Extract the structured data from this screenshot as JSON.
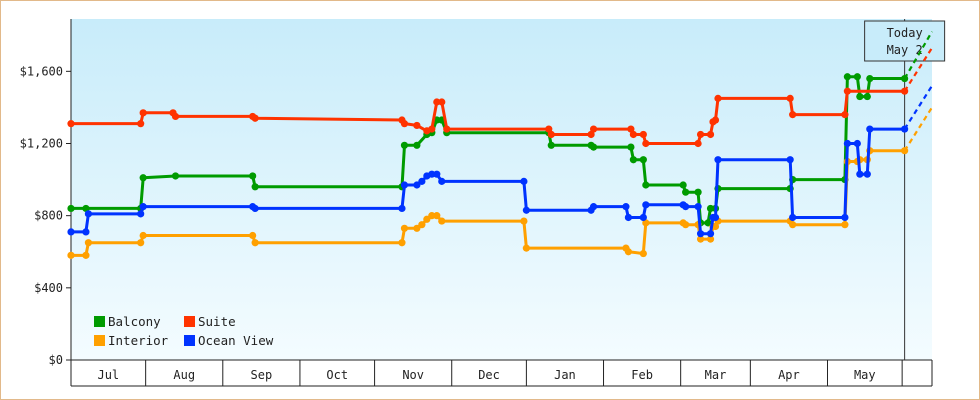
{
  "chart_data": {
    "type": "line",
    "title": "",
    "xlabel": "",
    "ylabel": "",
    "y_ticks": [
      "$0",
      "$400",
      "$800",
      "$1,200",
      "$1,600"
    ],
    "y_tick_values": [
      0,
      400,
      800,
      1200,
      1600
    ],
    "ylim": [
      0,
      1890
    ],
    "x_months": [
      "Jul",
      "Aug",
      "Sep",
      "Oct",
      "Nov",
      "Dec",
      "Jan",
      "Feb",
      "Mar",
      "Apr",
      "May"
    ],
    "x_range": [
      "2024-06-01",
      "2025-05-13"
    ],
    "today": {
      "label": "Today",
      "date_label": "May 2",
      "date": "2025-05-02"
    },
    "grid": false,
    "legend_position": "bottom-left",
    "series": [
      {
        "name": "Balcony",
        "color": "#009b00",
        "points": [
          [
            "2024-06-01",
            840
          ],
          [
            "2024-06-07",
            840
          ],
          [
            "2024-06-29",
            840
          ],
          [
            "2024-06-30",
            1010
          ],
          [
            "2024-07-13",
            1020
          ],
          [
            "2024-08-13",
            1020
          ],
          [
            "2024-08-14",
            960
          ],
          [
            "2024-10-12",
            960
          ],
          [
            "2024-10-13",
            1190
          ],
          [
            "2024-10-18",
            1190
          ],
          [
            "2024-10-22",
            1250
          ],
          [
            "2024-10-24",
            1260
          ],
          [
            "2024-10-26",
            1330
          ],
          [
            "2024-10-28",
            1330
          ],
          [
            "2024-10-30",
            1260
          ],
          [
            "2024-12-10",
            1260
          ],
          [
            "2024-12-11",
            1190
          ],
          [
            "2024-12-27",
            1190
          ],
          [
            "2024-12-28",
            1180
          ],
          [
            "2025-01-12",
            1180
          ],
          [
            "2025-01-13",
            1110
          ],
          [
            "2025-01-17",
            1110
          ],
          [
            "2025-01-18",
            970
          ],
          [
            "2025-02-02",
            970
          ],
          [
            "2025-02-03",
            930
          ],
          [
            "2025-02-08",
            930
          ],
          [
            "2025-02-09",
            760
          ],
          [
            "2025-02-12",
            760
          ],
          [
            "2025-02-13",
            840
          ],
          [
            "2025-02-15",
            840
          ],
          [
            "2025-02-16",
            950
          ],
          [
            "2025-03-17",
            950
          ],
          [
            "2025-03-18",
            1000
          ],
          [
            "2025-04-08",
            1000
          ],
          [
            "2025-04-09",
            1570
          ],
          [
            "2025-04-13",
            1570
          ],
          [
            "2025-04-14",
            1460
          ],
          [
            "2025-04-17",
            1460
          ],
          [
            "2025-04-18",
            1560
          ],
          [
            "2025-05-02",
            1560
          ]
        ]
      },
      {
        "name": "Suite",
        "color": "#ff3300",
        "points": [
          [
            "2024-06-01",
            1310
          ],
          [
            "2024-06-29",
            1310
          ],
          [
            "2024-06-30",
            1370
          ],
          [
            "2024-07-12",
            1370
          ],
          [
            "2024-07-13",
            1350
          ],
          [
            "2024-08-13",
            1350
          ],
          [
            "2024-08-14",
            1340
          ],
          [
            "2024-10-12",
            1330
          ],
          [
            "2024-10-13",
            1310
          ],
          [
            "2024-10-18",
            1300
          ],
          [
            "2024-10-22",
            1270
          ],
          [
            "2024-10-24",
            1280
          ],
          [
            "2024-10-26",
            1430
          ],
          [
            "2024-10-28",
            1430
          ],
          [
            "2024-10-30",
            1280
          ],
          [
            "2024-12-10",
            1280
          ],
          [
            "2024-12-11",
            1250
          ],
          [
            "2024-12-27",
            1250
          ],
          [
            "2024-12-28",
            1280
          ],
          [
            "2025-01-12",
            1280
          ],
          [
            "2025-01-13",
            1250
          ],
          [
            "2025-01-17",
            1250
          ],
          [
            "2025-01-18",
            1200
          ],
          [
            "2025-02-08",
            1200
          ],
          [
            "2025-02-09",
            1250
          ],
          [
            "2025-02-13",
            1250
          ],
          [
            "2025-02-14",
            1320
          ],
          [
            "2025-02-15",
            1330
          ],
          [
            "2025-02-16",
            1450
          ],
          [
            "2025-03-17",
            1450
          ],
          [
            "2025-03-18",
            1360
          ],
          [
            "2025-04-08",
            1360
          ],
          [
            "2025-04-09",
            1490
          ],
          [
            "2025-05-02",
            1490
          ]
        ]
      },
      {
        "name": "Interior",
        "color": "#ffa000",
        "points": [
          [
            "2024-06-01",
            580
          ],
          [
            "2024-06-07",
            580
          ],
          [
            "2024-06-08",
            650
          ],
          [
            "2024-06-29",
            650
          ],
          [
            "2024-06-30",
            690
          ],
          [
            "2024-08-13",
            690
          ],
          [
            "2024-08-14",
            650
          ],
          [
            "2024-10-12",
            650
          ],
          [
            "2024-10-13",
            730
          ],
          [
            "2024-10-18",
            730
          ],
          [
            "2024-10-20",
            750
          ],
          [
            "2024-10-22",
            780
          ],
          [
            "2024-10-24",
            800
          ],
          [
            "2024-10-26",
            800
          ],
          [
            "2024-10-28",
            770
          ],
          [
            "2024-11-30",
            770
          ],
          [
            "2024-12-01",
            620
          ],
          [
            "2025-01-10",
            620
          ],
          [
            "2025-01-11",
            600
          ],
          [
            "2025-01-17",
            590
          ],
          [
            "2025-01-18",
            760
          ],
          [
            "2025-02-02",
            760
          ],
          [
            "2025-02-03",
            750
          ],
          [
            "2025-02-08",
            750
          ],
          [
            "2025-02-09",
            670
          ],
          [
            "2025-02-13",
            670
          ],
          [
            "2025-02-14",
            740
          ],
          [
            "2025-02-15",
            740
          ],
          [
            "2025-02-16",
            770
          ],
          [
            "2025-03-17",
            770
          ],
          [
            "2025-03-18",
            750
          ],
          [
            "2025-04-08",
            750
          ],
          [
            "2025-04-09",
            1100
          ],
          [
            "2025-04-13",
            1100
          ],
          [
            "2025-04-14",
            1110
          ],
          [
            "2025-04-17",
            1110
          ],
          [
            "2025-04-18",
            1160
          ],
          [
            "2025-05-02",
            1160
          ]
        ]
      },
      {
        "name": "Ocean View",
        "color": "#0033ff",
        "points": [
          [
            "2024-06-01",
            710
          ],
          [
            "2024-06-07",
            710
          ],
          [
            "2024-06-08",
            810
          ],
          [
            "2024-06-29",
            810
          ],
          [
            "2024-06-30",
            850
          ],
          [
            "2024-08-13",
            850
          ],
          [
            "2024-08-14",
            840
          ],
          [
            "2024-10-12",
            840
          ],
          [
            "2024-10-13",
            970
          ],
          [
            "2024-10-18",
            970
          ],
          [
            "2024-10-20",
            990
          ],
          [
            "2024-10-22",
            1020
          ],
          [
            "2024-10-24",
            1030
          ],
          [
            "2024-10-26",
            1030
          ],
          [
            "2024-10-28",
            990
          ],
          [
            "2024-11-30",
            990
          ],
          [
            "2024-12-01",
            830
          ],
          [
            "2024-12-27",
            830
          ],
          [
            "2024-12-28",
            850
          ],
          [
            "2025-01-10",
            850
          ],
          [
            "2025-01-11",
            790
          ],
          [
            "2025-01-17",
            790
          ],
          [
            "2025-01-18",
            860
          ],
          [
            "2025-02-02",
            860
          ],
          [
            "2025-02-03",
            850
          ],
          [
            "2025-02-08",
            850
          ],
          [
            "2025-02-09",
            700
          ],
          [
            "2025-02-13",
            700
          ],
          [
            "2025-02-14",
            790
          ],
          [
            "2025-02-15",
            790
          ],
          [
            "2025-02-16",
            1110
          ],
          [
            "2025-03-17",
            1110
          ],
          [
            "2025-03-18",
            790
          ],
          [
            "2025-04-08",
            790
          ],
          [
            "2025-04-09",
            1200
          ],
          [
            "2025-04-13",
            1200
          ],
          [
            "2025-04-14",
            1030
          ],
          [
            "2025-04-17",
            1030
          ],
          [
            "2025-04-18",
            1280
          ],
          [
            "2025-05-02",
            1280
          ]
        ]
      }
    ],
    "projection": {
      "end_date": "2025-05-13",
      "end_values": {
        "Balcony": 1820,
        "Suite": 1730,
        "Ocean View": 1520,
        "Interior": 1400
      }
    },
    "colors": {
      "plot_top": "#c8ecfa",
      "plot_bottom": "#f4fcff",
      "frame": "#e2b98a"
    }
  }
}
